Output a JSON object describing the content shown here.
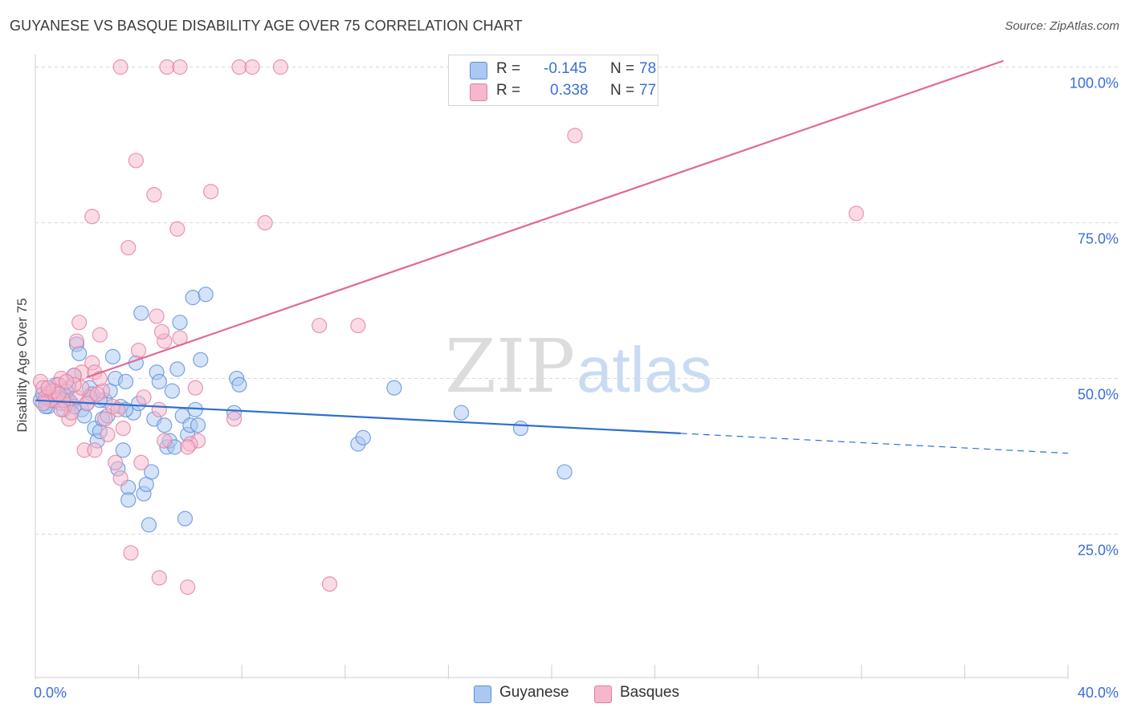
{
  "title": "GUYANESE VS BASQUE DISABILITY AGE OVER 75 CORRELATION CHART",
  "source": "Source: ZipAtlas.com",
  "watermark": {
    "zip": "ZIP",
    "atlas": "atlas"
  },
  "legend": {
    "rows": [
      {
        "r_label": "R =",
        "r_value": "-0.145",
        "n_label": "N =",
        "n_value": "78"
      },
      {
        "r_label": "R =",
        "r_value": "0.338",
        "n_label": "N =",
        "n_value": "77"
      }
    ]
  },
  "bottom_legend": {
    "guyanese": "Guyanese",
    "basques": "Basques"
  },
  "colors": {
    "guyanese_fill": "#a9c8f2",
    "guyanese_stroke": "#5b8fd8",
    "guyanese_line": "#2d6fd0",
    "basques_fill": "#f6b6cb",
    "basques_stroke": "#e07fa0",
    "basques_line": "#e06a92",
    "tick_text": "#3a6fd6",
    "grid": "#d8d8d8"
  },
  "chart_data": {
    "type": "scatter",
    "title": "GUYANESE VS BASQUE DISABILITY AGE OVER 75 CORRELATION CHART",
    "xlabel": "",
    "ylabel": "Disability Age Over 75",
    "xlim": [
      0,
      40
    ],
    "ylim": [
      2,
      102
    ],
    "x_tick_labels": [
      {
        "value": 0,
        "label": "0.0%"
      },
      {
        "value": 40,
        "label": "40.0%"
      }
    ],
    "y_tick_labels": [
      {
        "value": 25,
        "label": "25.0%"
      },
      {
        "value": 50,
        "label": "50.0%"
      },
      {
        "value": 75,
        "label": "75.0%"
      },
      {
        "value": 100,
        "label": "100.0%"
      }
    ],
    "series": [
      {
        "name": "Guyanese",
        "r": -0.145,
        "n": 78,
        "trend": {
          "x0": 0,
          "y0": 46.5,
          "x_solid_end": 25,
          "x1": 40,
          "y1": 38.0
        },
        "points": [
          [
            0.2,
            46.5
          ],
          [
            0.3,
            47.5
          ],
          [
            0.4,
            46.0
          ],
          [
            0.5,
            45.5
          ],
          [
            0.6,
            48.0
          ],
          [
            0.7,
            46.5
          ],
          [
            0.8,
            49.0
          ],
          [
            0.9,
            47.0
          ],
          [
            1.0,
            46.0
          ],
          [
            1.1,
            45.0
          ],
          [
            1.2,
            47.0
          ],
          [
            1.3,
            48.5
          ],
          [
            1.4,
            46.0
          ],
          [
            1.5,
            50.5
          ],
          [
            1.6,
            55.5
          ],
          [
            1.7,
            54.0
          ],
          [
            1.8,
            45.0
          ],
          [
            1.9,
            44.0
          ],
          [
            2.0,
            46.0
          ],
          [
            2.1,
            48.5
          ],
          [
            2.2,
            47.5
          ],
          [
            2.3,
            42.0
          ],
          [
            2.4,
            40.0
          ],
          [
            2.5,
            41.5
          ],
          [
            2.6,
            43.5
          ],
          [
            2.7,
            46.5
          ],
          [
            2.8,
            44.0
          ],
          [
            2.9,
            48.0
          ],
          [
            3.0,
            53.5
          ],
          [
            3.1,
            50.0
          ],
          [
            3.2,
            35.5
          ],
          [
            3.3,
            45.5
          ],
          [
            3.4,
            38.5
          ],
          [
            3.5,
            49.5
          ],
          [
            3.6,
            32.5
          ],
          [
            3.6,
            30.5
          ],
          [
            3.8,
            44.5
          ],
          [
            3.9,
            52.5
          ],
          [
            4.0,
            46.0
          ],
          [
            4.1,
            60.5
          ],
          [
            4.2,
            31.5
          ],
          [
            4.3,
            33.0
          ],
          [
            4.4,
            26.5
          ],
          [
            4.5,
            35.0
          ],
          [
            4.6,
            43.5
          ],
          [
            4.7,
            51.0
          ],
          [
            4.8,
            49.5
          ],
          [
            5.0,
            42.5
          ],
          [
            5.1,
            39.0
          ],
          [
            5.2,
            40.0
          ],
          [
            5.3,
            48.0
          ],
          [
            5.4,
            39.0
          ],
          [
            5.5,
            51.5
          ],
          [
            5.6,
            59.0
          ],
          [
            5.7,
            44.0
          ],
          [
            5.8,
            27.5
          ],
          [
            5.9,
            41.0
          ],
          [
            6.0,
            42.5
          ],
          [
            6.1,
            63.0
          ],
          [
            6.2,
            45.0
          ],
          [
            6.3,
            42.5
          ],
          [
            6.4,
            53.0
          ],
          [
            6.6,
            63.5
          ],
          [
            7.7,
            44.5
          ],
          [
            7.8,
            50.0
          ],
          [
            7.9,
            49.0
          ],
          [
            0.4,
            45.5
          ],
          [
            1.3,
            46.5
          ],
          [
            1.2,
            48.0
          ],
          [
            2.5,
            46.5
          ],
          [
            1.5,
            45.5
          ],
          [
            3.5,
            45.0
          ],
          [
            12.5,
            39.5
          ],
          [
            12.7,
            40.5
          ],
          [
            13.9,
            48.5
          ],
          [
            16.5,
            44.5
          ],
          [
            18.8,
            42.0
          ],
          [
            20.5,
            35.0
          ]
        ]
      },
      {
        "name": "Basques",
        "r": 0.338,
        "n": 77,
        "trend": {
          "x0": 2.0,
          "y0": 50.2,
          "x_solid_end": 37.5,
          "x1": 37.5,
          "y1": 101.0
        },
        "points": [
          [
            3.3,
            100.0
          ],
          [
            5.1,
            100.0
          ],
          [
            5.6,
            100.0
          ],
          [
            7.9,
            100.0
          ],
          [
            8.4,
            100.0
          ],
          [
            9.5,
            100.0
          ],
          [
            3.9,
            85.0
          ],
          [
            4.6,
            79.5
          ],
          [
            6.8,
            80.0
          ],
          [
            2.2,
            76.0
          ],
          [
            3.6,
            71.0
          ],
          [
            5.5,
            74.0
          ],
          [
            8.9,
            75.0
          ],
          [
            20.9,
            89.0
          ],
          [
            31.8,
            76.5
          ],
          [
            1.7,
            59.0
          ],
          [
            4.7,
            60.0
          ],
          [
            2.5,
            57.0
          ],
          [
            1.6,
            56.0
          ],
          [
            5.0,
            56.0
          ],
          [
            5.6,
            56.5
          ],
          [
            4.9,
            57.5
          ],
          [
            11.0,
            58.5
          ],
          [
            12.5,
            58.5
          ],
          [
            4.0,
            54.5
          ],
          [
            2.2,
            52.5
          ],
          [
            1.8,
            51.0
          ],
          [
            2.3,
            51.0
          ],
          [
            1.0,
            50.0
          ],
          [
            1.5,
            50.5
          ],
          [
            0.9,
            49.0
          ],
          [
            0.2,
            49.5
          ],
          [
            0.5,
            47.5
          ],
          [
            0.8,
            46.5
          ],
          [
            1.2,
            46.0
          ],
          [
            2.6,
            48.0
          ],
          [
            3.0,
            45.5
          ],
          [
            4.2,
            47.0
          ],
          [
            4.8,
            45.0
          ],
          [
            5.0,
            40.0
          ],
          [
            6.3,
            40.0
          ],
          [
            6.0,
            39.5
          ],
          [
            6.2,
            48.5
          ],
          [
            7.7,
            43.5
          ],
          [
            1.9,
            38.5
          ],
          [
            2.3,
            38.5
          ],
          [
            2.8,
            41.0
          ],
          [
            3.4,
            42.0
          ],
          [
            3.1,
            36.5
          ],
          [
            3.3,
            34.0
          ],
          [
            4.1,
            36.5
          ],
          [
            2.7,
            43.5
          ],
          [
            1.3,
            43.5
          ],
          [
            0.3,
            48.5
          ],
          [
            0.6,
            46.5
          ],
          [
            1.1,
            46.5
          ],
          [
            2.1,
            47.0
          ],
          [
            2.5,
            50.0
          ],
          [
            1.4,
            44.5
          ],
          [
            3.7,
            22.0
          ],
          [
            4.8,
            18.0
          ],
          [
            5.9,
            16.5
          ],
          [
            11.4,
            17.0
          ],
          [
            0.4,
            47.0
          ],
          [
            0.7,
            48.0
          ],
          [
            1.0,
            45.0
          ],
          [
            1.6,
            47.0
          ],
          [
            2.0,
            46.0
          ],
          [
            0.3,
            46.0
          ],
          [
            1.8,
            48.5
          ],
          [
            2.4,
            47.5
          ],
          [
            1.5,
            49.0
          ],
          [
            0.9,
            47.5
          ],
          [
            5.9,
            39.0
          ],
          [
            0.5,
            48.5
          ],
          [
            1.2,
            49.5
          ],
          [
            3.2,
            45.0
          ]
        ]
      }
    ]
  }
}
